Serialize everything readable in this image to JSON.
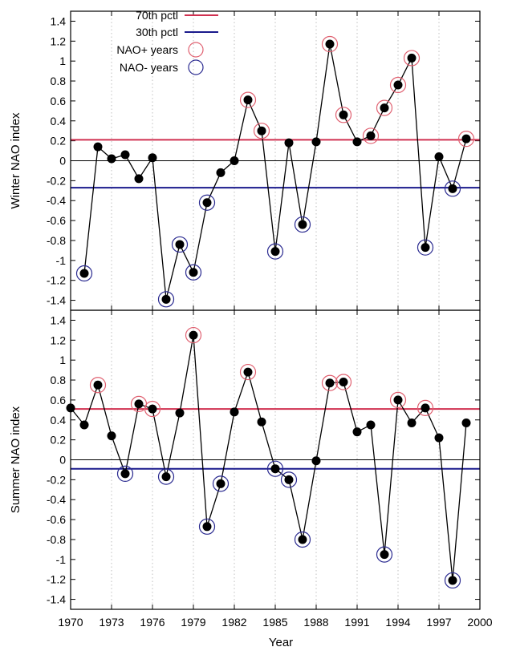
{
  "figure": {
    "xlabel": "Year",
    "x_ticks": [
      "1970",
      "1973",
      "1976",
      "1979",
      "1982",
      "1985",
      "1988",
      "1991",
      "1994",
      "1997",
      "2000"
    ],
    "legend": {
      "pctl70": "70th pctl",
      "pctl30": "30th pctl",
      "nao_plus": "NAO+ years",
      "nao_minus": "NAO- years"
    },
    "colors": {
      "pctl70": "#d03050",
      "pctl30": "#1a1a8c",
      "nao_plus_circle": "#e06070",
      "nao_minus_circle": "#2a2a90",
      "series": "#000000",
      "grid": "#b0b0b0"
    },
    "y_ticks": [
      "1.4",
      "1.2",
      "1",
      "0.8",
      "0.6",
      "0.4",
      "0.2",
      "0",
      "-0.2",
      "-0.4",
      "-0.6",
      "-0.8",
      "-1",
      "-1.2",
      "-1.4"
    ]
  },
  "chart_data": [
    {
      "type": "line",
      "ylabel": "Winter NAO index",
      "xlim": [
        1970,
        2000
      ],
      "ylim": [
        -1.5,
        1.5
      ],
      "grid": true,
      "legend_position": "top-left",
      "x": [
        1971,
        1972,
        1973,
        1974,
        1975,
        1976,
        1977,
        1978,
        1979,
        1980,
        1981,
        1982,
        1983,
        1984,
        1985,
        1986,
        1987,
        1988,
        1989,
        1990,
        1991,
        1992,
        1993,
        1994,
        1995,
        1996,
        1997,
        1998,
        1999
      ],
      "values": [
        -1.13,
        0.14,
        0.02,
        0.06,
        -0.18,
        0.03,
        -1.39,
        -0.84,
        -1.12,
        -0.42,
        -0.12,
        0.0,
        0.61,
        0.3,
        -0.91,
        0.18,
        -0.64,
        0.19,
        1.17,
        0.46,
        0.19,
        0.25,
        0.53,
        0.76,
        1.03,
        -0.87,
        0.04,
        -0.28,
        0.22
      ],
      "pctl70": 0.21,
      "pctl30": -0.27,
      "nao_plus_years": [
        1983,
        1984,
        1989,
        1990,
        1992,
        1993,
        1994,
        1995,
        1999
      ],
      "nao_minus_years": [
        1971,
        1977,
        1978,
        1979,
        1980,
        1985,
        1987,
        1996,
        1998
      ]
    },
    {
      "type": "line",
      "ylabel": "Summer NAO index",
      "xlim": [
        1970,
        2000
      ],
      "ylim": [
        -1.5,
        1.5
      ],
      "grid": true,
      "x": [
        1970,
        1971,
        1972,
        1973,
        1974,
        1975,
        1976,
        1977,
        1978,
        1979,
        1980,
        1981,
        1982,
        1983,
        1984,
        1985,
        1986,
        1987,
        1988,
        1989,
        1990,
        1991,
        1992,
        1993,
        1994,
        1995,
        1996,
        1997,
        1998,
        1999
      ],
      "values": [
        0.52,
        0.35,
        0.75,
        0.24,
        -0.14,
        0.56,
        0.51,
        -0.17,
        0.47,
        1.25,
        -0.67,
        -0.24,
        0.48,
        0.88,
        0.38,
        -0.09,
        -0.2,
        -0.8,
        -0.01,
        0.77,
        0.78,
        0.28,
        0.35,
        -0.95,
        0.6,
        0.37,
        0.52,
        0.22,
        -1.21,
        0.37
      ],
      "pctl70": 0.51,
      "pctl30": -0.09,
      "nao_plus_years": [
        1972,
        1975,
        1976,
        1979,
        1983,
        1989,
        1990,
        1994,
        1996
      ],
      "nao_minus_years": [
        1974,
        1977,
        1980,
        1981,
        1985,
        1986,
        1987,
        1993,
        1998
      ]
    }
  ]
}
